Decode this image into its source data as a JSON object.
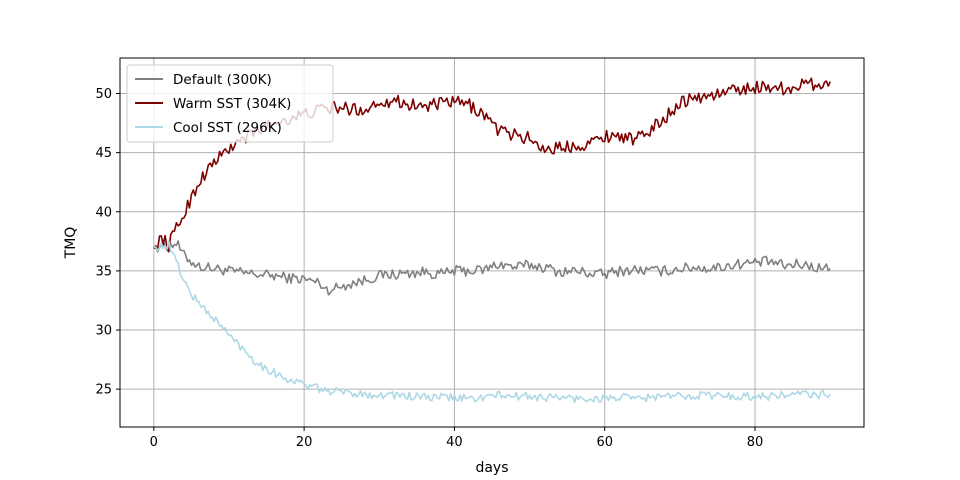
{
  "chart_data": {
    "type": "line",
    "title": "",
    "xlabel": "days",
    "ylabel": "TMQ",
    "xlim": [
      -4.5,
      94.5
    ],
    "ylim": [
      21.8,
      53.0
    ],
    "xticks": [
      0,
      20,
      40,
      60,
      80
    ],
    "yticks": [
      25,
      30,
      35,
      40,
      45,
      50
    ],
    "grid": true,
    "legend_position": "top-left",
    "series": [
      {
        "name": "Default (300K)",
        "color": "#808080",
        "x": [
          0,
          1,
          2,
          3,
          4,
          5,
          6,
          8,
          10,
          12,
          14,
          16,
          18,
          20,
          22,
          23,
          24,
          26,
          28,
          30,
          32,
          34,
          36,
          38,
          40,
          42,
          44,
          46,
          48,
          50,
          52,
          54,
          56,
          58,
          60,
          62,
          64,
          66,
          68,
          70,
          72,
          74,
          76,
          78,
          80,
          82,
          84,
          86,
          88,
          90
        ],
        "y": [
          36.9,
          37.2,
          37.0,
          37.4,
          36.3,
          35.8,
          35.4,
          35.2,
          35.0,
          34.8,
          34.7,
          34.6,
          34.4,
          34.3,
          34.0,
          33.4,
          33.5,
          33.9,
          34.2,
          34.6,
          34.7,
          34.8,
          34.9,
          34.7,
          35.0,
          35.0,
          35.1,
          35.6,
          35.3,
          35.5,
          35.3,
          34.9,
          35.0,
          34.8,
          34.7,
          35.0,
          35.1,
          35.0,
          35.0,
          35.2,
          35.3,
          35.2,
          35.4,
          35.6,
          35.7,
          35.8,
          35.4,
          35.6,
          35.3,
          35.2
        ]
      },
      {
        "name": "Warm SST (304K)",
        "color": "#7b0000",
        "x": [
          0,
          1,
          2,
          3,
          4,
          5,
          6,
          7,
          8,
          10,
          12,
          14,
          16,
          18,
          20,
          22,
          24,
          26,
          28,
          30,
          32,
          34,
          36,
          38,
          40,
          42,
          44,
          46,
          48,
          50,
          52,
          54,
          56,
          58,
          60,
          62,
          64,
          66,
          68,
          70,
          72,
          74,
          76,
          78,
          80,
          82,
          84,
          86,
          88,
          90
        ],
        "y": [
          36.9,
          37.8,
          37.2,
          38.6,
          39.8,
          41.2,
          42.5,
          43.4,
          44.2,
          45.3,
          46.2,
          46.9,
          47.5,
          47.9,
          48.2,
          48.6,
          48.8,
          48.7,
          48.6,
          49.3,
          49.4,
          49.1,
          48.9,
          49.1,
          49.3,
          49.0,
          48.2,
          46.8,
          46.5,
          46.2,
          45.3,
          45.4,
          45.6,
          45.8,
          46.4,
          46.5,
          46.0,
          46.9,
          47.9,
          49.3,
          49.6,
          49.8,
          50.1,
          50.4,
          50.5,
          50.6,
          50.4,
          50.7,
          50.8,
          51.0
        ]
      },
      {
        "name": "Cool SST (296K)",
        "color": "#add8e6",
        "x": [
          0,
          1,
          2,
          3,
          4,
          5,
          6,
          7,
          8,
          10,
          12,
          14,
          16,
          18,
          20,
          22,
          24,
          26,
          28,
          30,
          32,
          34,
          36,
          38,
          40,
          42,
          44,
          46,
          48,
          50,
          52,
          54,
          56,
          58,
          60,
          62,
          64,
          66,
          68,
          70,
          72,
          74,
          76,
          78,
          80,
          82,
          84,
          86,
          88,
          90
        ],
        "y": [
          37.0,
          37.1,
          37.2,
          35.8,
          34.2,
          33.0,
          32.3,
          31.6,
          31.0,
          29.6,
          28.3,
          27.1,
          26.4,
          25.8,
          25.4,
          25.0,
          24.8,
          24.7,
          24.6,
          24.5,
          24.5,
          24.4,
          24.3,
          24.3,
          24.3,
          24.2,
          24.3,
          24.5,
          24.4,
          24.4,
          24.3,
          24.3,
          24.2,
          24.2,
          24.2,
          24.3,
          24.2,
          24.3,
          24.4,
          24.4,
          24.5,
          24.5,
          24.4,
          24.4,
          24.4,
          24.4,
          24.5,
          24.6,
          24.5,
          24.6
        ]
      }
    ]
  }
}
